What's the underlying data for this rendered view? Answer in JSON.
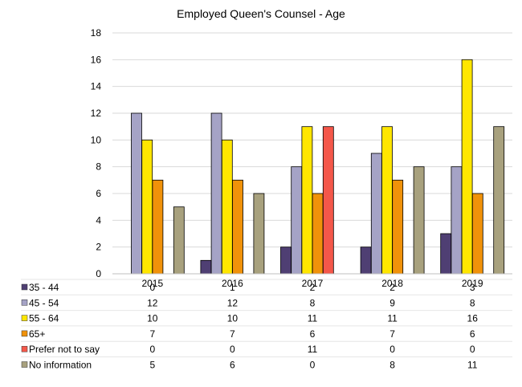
{
  "chart_data": {
    "type": "bar",
    "title": "Employed Queen's Counsel - Age",
    "categories": [
      "2015",
      "2016",
      "2017",
      "2018",
      "2019"
    ],
    "ylim": [
      0,
      18
    ],
    "yticks": [
      0,
      2,
      4,
      6,
      8,
      10,
      12,
      14,
      16,
      18
    ],
    "grid": true,
    "legend": "data-table-below",
    "series": [
      {
        "name": "35 - 44",
        "values": [
          0,
          1,
          2,
          2,
          3
        ],
        "color": "#4f3f73"
      },
      {
        "name": "45 - 54",
        "values": [
          12,
          12,
          8,
          9,
          8
        ],
        "color": "#a5a3c6"
      },
      {
        "name": "55 - 64",
        "values": [
          10,
          10,
          11,
          11,
          16
        ],
        "color": "#ffe600"
      },
      {
        "name": "65+",
        "values": [
          7,
          7,
          6,
          7,
          6
        ],
        "color": "#f0920a"
      },
      {
        "name": "Prefer not to say",
        "values": [
          0,
          0,
          11,
          0,
          0
        ],
        "color": "#f4574a"
      },
      {
        "name": "No information",
        "values": [
          5,
          6,
          0,
          8,
          11
        ],
        "color": "#a8a17e"
      }
    ]
  }
}
